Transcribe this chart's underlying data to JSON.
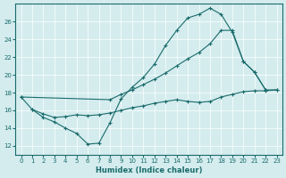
{
  "bg_color": "#d4ecee",
  "line_color": "#1a6b6b",
  "xlabel": "Humidex (Indice chaleur)",
  "xlim": [
    -0.5,
    23.5
  ],
  "ylim": [
    11.0,
    28.0
  ],
  "xticks": [
    0,
    1,
    2,
    3,
    4,
    5,
    6,
    7,
    8,
    9,
    10,
    11,
    12,
    13,
    14,
    15,
    16,
    17,
    18,
    19,
    20,
    21,
    22,
    23
  ],
  "yticks": [
    12,
    14,
    16,
    18,
    20,
    22,
    24,
    26
  ],
  "line1_x": [
    0,
    1,
    2,
    3,
    4,
    5,
    6,
    7,
    8,
    9,
    10,
    11,
    12,
    13,
    14,
    15,
    16,
    17,
    18,
    19,
    20,
    21,
    22
  ],
  "line1_y": [
    17.5,
    16.1,
    15.2,
    14.7,
    14.0,
    13.4,
    12.2,
    12.3,
    14.6,
    17.3,
    18.6,
    19.7,
    21.2,
    23.3,
    25.0,
    26.4,
    26.8,
    27.5,
    26.8,
    24.8,
    21.5,
    20.3,
    18.3
  ],
  "line2_x": [
    0,
    8,
    9,
    10,
    11,
    12,
    13,
    14,
    15,
    16,
    17,
    18,
    19,
    20,
    21,
    22,
    23
  ],
  "line2_y": [
    17.5,
    17.2,
    17.8,
    18.3,
    18.9,
    19.5,
    20.2,
    21.0,
    21.8,
    22.5,
    23.5,
    25.0,
    25.0,
    21.5,
    20.3,
    18.3,
    18.3
  ],
  "line3_x": [
    1,
    2,
    3,
    4,
    5,
    6,
    7,
    8,
    9,
    10,
    11,
    12,
    13,
    14,
    15,
    16,
    17,
    18,
    19,
    20,
    21,
    22,
    23
  ],
  "line3_y": [
    16.1,
    15.6,
    15.2,
    15.3,
    15.5,
    15.4,
    15.5,
    15.7,
    16.0,
    16.3,
    16.5,
    16.8,
    17.0,
    17.2,
    17.0,
    16.9,
    17.0,
    17.5,
    17.8,
    18.1,
    18.2,
    18.2,
    18.3
  ]
}
